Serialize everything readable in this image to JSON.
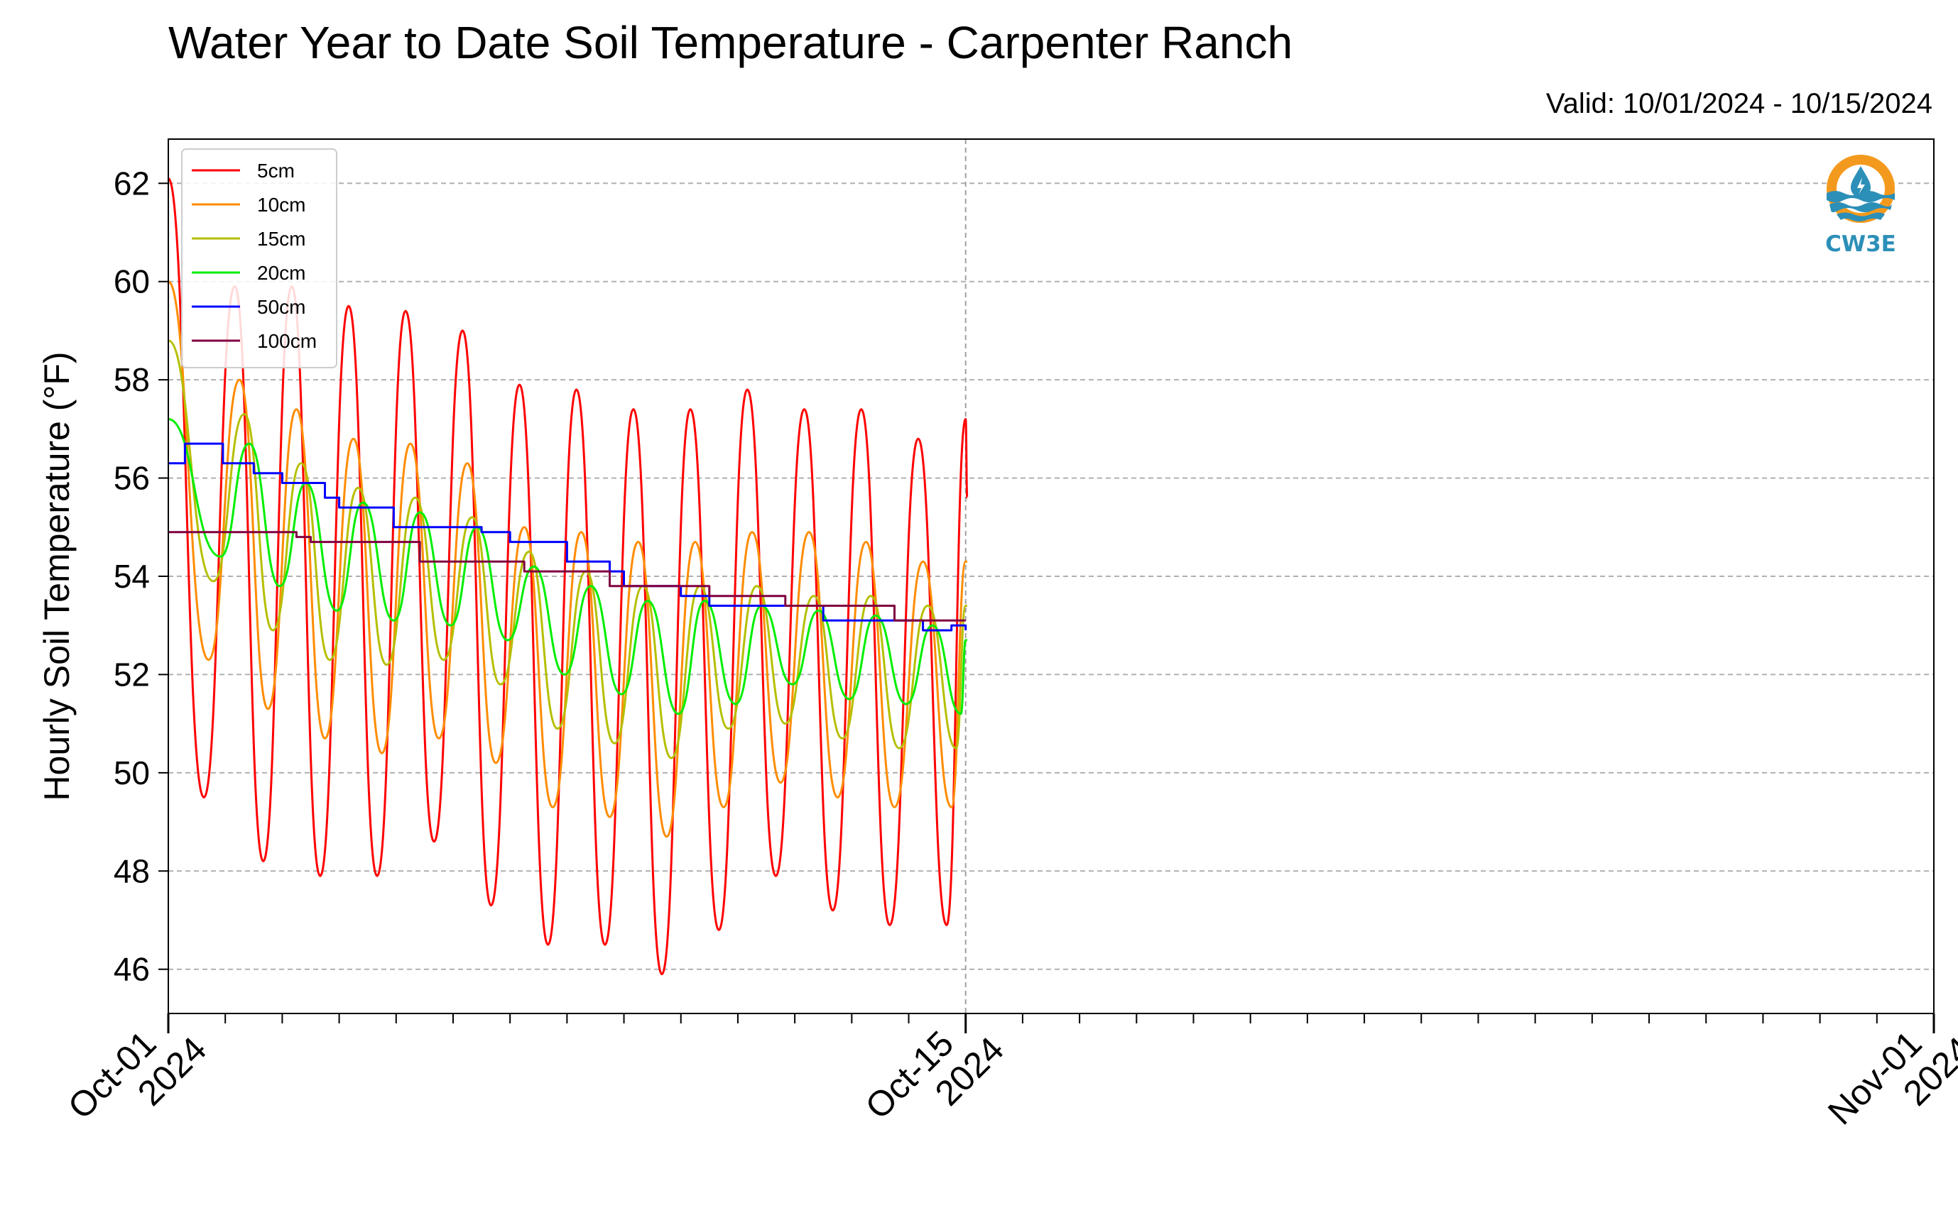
{
  "chart_data": {
    "type": "line",
    "title": "Water Year to Date Soil Temperature - Carpenter Ranch",
    "valid_label": "Valid: 10/01/2024 - 10/15/2024",
    "ylabel": "Hourly Soil Temperature (°F)",
    "xlabel": "",
    "x_range": [
      "2024-10-01",
      "2024-11-01"
    ],
    "ylim": [
      45.1,
      62.9
    ],
    "yticks": [
      46,
      48,
      50,
      52,
      54,
      56,
      58,
      60,
      62
    ],
    "ytick_labels": [
      "46",
      "48",
      "50",
      "52",
      "54",
      "56",
      "58",
      "60",
      "62"
    ],
    "xtick_labels": [
      {
        "date": "2024-10-01",
        "line1": "Oct-01",
        "line2": "2024"
      },
      {
        "date": "2024-10-15",
        "line1": "Oct-15",
        "line2": "2024"
      },
      {
        "date": "2024-11-01",
        "line1": "Nov-01",
        "line2": "2024"
      }
    ],
    "grid": true,
    "legend_position": "top-left",
    "vertical_marker_date": "2024-10-15",
    "series": [
      {
        "name": "5cm",
        "color": "#ff0000",
        "min_points": [
          {
            "x": "2024-10-01T15:00",
            "y": 49.5
          },
          {
            "x": "2024-10-02T16:00",
            "y": 48.2
          },
          {
            "x": "2024-10-03T16:00",
            "y": 47.9
          },
          {
            "x": "2024-10-04T16:00",
            "y": 47.9
          },
          {
            "x": "2024-10-05T16:00",
            "y": 48.6
          },
          {
            "x": "2024-10-06T16:00",
            "y": 47.3
          },
          {
            "x": "2024-10-07T16:00",
            "y": 46.5
          },
          {
            "x": "2024-10-08T16:00",
            "y": 46.5
          },
          {
            "x": "2024-10-09T16:00",
            "y": 45.9
          },
          {
            "x": "2024-10-10T16:00",
            "y": 46.8
          },
          {
            "x": "2024-10-11T16:00",
            "y": 47.9
          },
          {
            "x": "2024-10-12T16:00",
            "y": 47.2
          },
          {
            "x": "2024-10-13T16:00",
            "y": 46.9
          },
          {
            "x": "2024-10-14T16:00",
            "y": 46.9
          }
        ],
        "max_points": [
          {
            "x": "2024-10-01T00:00",
            "y": 62.1
          },
          {
            "x": "2024-10-02T04:00",
            "y": 59.9
          },
          {
            "x": "2024-10-03T04:00",
            "y": 59.9
          },
          {
            "x": "2024-10-04T04:00",
            "y": 59.5
          },
          {
            "x": "2024-10-05T04:00",
            "y": 59.4
          },
          {
            "x": "2024-10-06T04:00",
            "y": 59.0
          },
          {
            "x": "2024-10-07T04:00",
            "y": 57.9
          },
          {
            "x": "2024-10-08T04:00",
            "y": 57.8
          },
          {
            "x": "2024-10-09T04:00",
            "y": 57.4
          },
          {
            "x": "2024-10-10T04:00",
            "y": 57.4
          },
          {
            "x": "2024-10-11T04:00",
            "y": 57.8
          },
          {
            "x": "2024-10-12T04:00",
            "y": 57.4
          },
          {
            "x": "2024-10-13T04:00",
            "y": 57.4
          },
          {
            "x": "2024-10-14T04:00",
            "y": 56.8
          },
          {
            "x": "2024-10-15T00:00",
            "y": 57.2
          }
        ],
        "last_point": {
          "x": "2024-10-15T00:40",
          "y": 55.6
        }
      },
      {
        "name": "10cm",
        "color": "#ff8c00",
        "min_points": [
          {
            "x": "2024-10-01T17:00",
            "y": 52.3
          },
          {
            "x": "2024-10-02T18:00",
            "y": 51.3
          },
          {
            "x": "2024-10-03T18:00",
            "y": 50.7
          },
          {
            "x": "2024-10-04T18:00",
            "y": 50.4
          },
          {
            "x": "2024-10-05T18:00",
            "y": 50.7
          },
          {
            "x": "2024-10-06T18:00",
            "y": 50.2
          },
          {
            "x": "2024-10-07T18:00",
            "y": 49.3
          },
          {
            "x": "2024-10-08T18:00",
            "y": 49.1
          },
          {
            "x": "2024-10-09T18:00",
            "y": 48.7
          },
          {
            "x": "2024-10-10T18:00",
            "y": 49.3
          },
          {
            "x": "2024-10-11T18:00",
            "y": 49.8
          },
          {
            "x": "2024-10-12T18:00",
            "y": 49.5
          },
          {
            "x": "2024-10-13T18:00",
            "y": 49.3
          },
          {
            "x": "2024-10-14T18:00",
            "y": 49.3
          }
        ],
        "max_points": [
          {
            "x": "2024-10-01T00:00",
            "y": 60.0
          },
          {
            "x": "2024-10-02T06:00",
            "y": 58.0
          },
          {
            "x": "2024-10-03T06:00",
            "y": 57.4
          },
          {
            "x": "2024-10-04T06:00",
            "y": 56.8
          },
          {
            "x": "2024-10-05T06:00",
            "y": 56.7
          },
          {
            "x": "2024-10-06T06:00",
            "y": 56.3
          },
          {
            "x": "2024-10-07T06:00",
            "y": 55.0
          },
          {
            "x": "2024-10-08T06:00",
            "y": 54.9
          },
          {
            "x": "2024-10-09T06:00",
            "y": 54.7
          },
          {
            "x": "2024-10-10T06:00",
            "y": 54.7
          },
          {
            "x": "2024-10-11T06:00",
            "y": 54.9
          },
          {
            "x": "2024-10-12T06:00",
            "y": 54.9
          },
          {
            "x": "2024-10-13T06:00",
            "y": 54.7
          },
          {
            "x": "2024-10-14T06:00",
            "y": 54.3
          },
          {
            "x": "2024-10-15T00:00",
            "y": 54.3
          }
        ],
        "last_point": {
          "x": "2024-10-15T00:40",
          "y": 54.3
        }
      },
      {
        "name": "15cm",
        "color": "#b5bf00",
        "min_points": [
          {
            "x": "2024-10-01T19:00",
            "y": 53.9
          },
          {
            "x": "2024-10-02T20:00",
            "y": 52.9
          },
          {
            "x": "2024-10-03T20:00",
            "y": 52.3
          },
          {
            "x": "2024-10-04T20:00",
            "y": 52.2
          },
          {
            "x": "2024-10-05T20:00",
            "y": 52.3
          },
          {
            "x": "2024-10-06T20:00",
            "y": 51.8
          },
          {
            "x": "2024-10-07T20:00",
            "y": 50.9
          },
          {
            "x": "2024-10-08T20:00",
            "y": 50.6
          },
          {
            "x": "2024-10-09T20:00",
            "y": 50.3
          },
          {
            "x": "2024-10-10T20:00",
            "y": 50.9
          },
          {
            "x": "2024-10-11T20:00",
            "y": 51.0
          },
          {
            "x": "2024-10-12T20:00",
            "y": 50.7
          },
          {
            "x": "2024-10-13T20:00",
            "y": 50.5
          },
          {
            "x": "2024-10-14T20:00",
            "y": 50.5
          }
        ],
        "max_points": [
          {
            "x": "2024-10-01T00:00",
            "y": 58.8
          },
          {
            "x": "2024-10-02T08:00",
            "y": 57.3
          },
          {
            "x": "2024-10-03T08:00",
            "y": 56.3
          },
          {
            "x": "2024-10-04T08:00",
            "y": 55.8
          },
          {
            "x": "2024-10-05T08:00",
            "y": 55.6
          },
          {
            "x": "2024-10-06T08:00",
            "y": 55.2
          },
          {
            "x": "2024-10-07T08:00",
            "y": 54.5
          },
          {
            "x": "2024-10-08T08:00",
            "y": 54.1
          },
          {
            "x": "2024-10-09T08:00",
            "y": 53.8
          },
          {
            "x": "2024-10-10T08:00",
            "y": 53.8
          },
          {
            "x": "2024-10-11T08:00",
            "y": 53.8
          },
          {
            "x": "2024-10-12T08:00",
            "y": 53.6
          },
          {
            "x": "2024-10-13T08:00",
            "y": 53.6
          },
          {
            "x": "2024-10-14T08:00",
            "y": 53.4
          },
          {
            "x": "2024-10-15T00:00",
            "y": 53.4
          }
        ],
        "last_point": {
          "x": "2024-10-15T00:40",
          "y": 53.4
        }
      },
      {
        "name": "20cm",
        "color": "#00ee00",
        "min_points": [
          {
            "x": "2024-10-01T22:00",
            "y": 54.4
          },
          {
            "x": "2024-10-02T23:00",
            "y": 53.8
          },
          {
            "x": "2024-10-03T23:00",
            "y": 53.3
          },
          {
            "x": "2024-10-04T23:00",
            "y": 53.1
          },
          {
            "x": "2024-10-05T23:00",
            "y": 53.0
          },
          {
            "x": "2024-10-06T23:00",
            "y": 52.7
          },
          {
            "x": "2024-10-07T23:00",
            "y": 52.0
          },
          {
            "x": "2024-10-08T23:00",
            "y": 51.6
          },
          {
            "x": "2024-10-09T23:00",
            "y": 51.2
          },
          {
            "x": "2024-10-10T23:00",
            "y": 51.4
          },
          {
            "x": "2024-10-11T23:00",
            "y": 51.8
          },
          {
            "x": "2024-10-12T23:00",
            "y": 51.5
          },
          {
            "x": "2024-10-13T23:00",
            "y": 51.4
          },
          {
            "x": "2024-10-14T22:00",
            "y": 51.2
          }
        ],
        "max_points": [
          {
            "x": "2024-10-01T00:00",
            "y": 57.2
          },
          {
            "x": "2024-10-02T10:00",
            "y": 56.7
          },
          {
            "x": "2024-10-03T10:00",
            "y": 55.9
          },
          {
            "x": "2024-10-04T10:00",
            "y": 55.5
          },
          {
            "x": "2024-10-05T10:00",
            "y": 55.3
          },
          {
            "x": "2024-10-06T10:00",
            "y": 55.0
          },
          {
            "x": "2024-10-07T10:00",
            "y": 54.2
          },
          {
            "x": "2024-10-08T10:00",
            "y": 53.8
          },
          {
            "x": "2024-10-09T10:00",
            "y": 53.5
          },
          {
            "x": "2024-10-10T10:00",
            "y": 53.5
          },
          {
            "x": "2024-10-11T10:00",
            "y": 53.4
          },
          {
            "x": "2024-10-12T10:00",
            "y": 53.3
          },
          {
            "x": "2024-10-13T10:00",
            "y": 53.2
          },
          {
            "x": "2024-10-14T10:00",
            "y": 53.0
          },
          {
            "x": "2024-10-15T00:00",
            "y": 52.7
          }
        ],
        "last_point": {
          "x": "2024-10-15T00:40",
          "y": 52.7
        }
      },
      {
        "name": "50cm",
        "color": "#0000ff",
        "steps": [
          {
            "x": "2024-10-01T00:00",
            "y": 56.3
          },
          {
            "x": "2024-10-01T07:00",
            "y": 56.7
          },
          {
            "x": "2024-10-01T23:00",
            "y": 56.3
          },
          {
            "x": "2024-10-02T12:00",
            "y": 56.1
          },
          {
            "x": "2024-10-03T00:00",
            "y": 55.9
          },
          {
            "x": "2024-10-03T18:00",
            "y": 55.6
          },
          {
            "x": "2024-10-04T00:00",
            "y": 55.4
          },
          {
            "x": "2024-10-04T23:00",
            "y": 55.0
          },
          {
            "x": "2024-10-06T12:00",
            "y": 54.9
          },
          {
            "x": "2024-10-07T00:00",
            "y": 54.7
          },
          {
            "x": "2024-10-08T00:00",
            "y": 54.3
          },
          {
            "x": "2024-10-08T18:00",
            "y": 54.1
          },
          {
            "x": "2024-10-09T00:00",
            "y": 53.8
          },
          {
            "x": "2024-10-10T00:00",
            "y": 53.6
          },
          {
            "x": "2024-10-10T12:00",
            "y": 53.4
          },
          {
            "x": "2024-10-11T12:00",
            "y": 53.4
          },
          {
            "x": "2024-10-12T12:00",
            "y": 53.1
          },
          {
            "x": "2024-10-13T12:00",
            "y": 53.1
          },
          {
            "x": "2024-10-14T06:00",
            "y": 52.9
          },
          {
            "x": "2024-10-14T18:00",
            "y": 53.0
          },
          {
            "x": "2024-10-15T00:00",
            "y": 52.9
          }
        ]
      },
      {
        "name": "100cm",
        "color": "#800040",
        "steps": [
          {
            "x": "2024-10-01T00:00",
            "y": 54.9
          },
          {
            "x": "2024-10-03T06:00",
            "y": 54.8
          },
          {
            "x": "2024-10-03T12:00",
            "y": 54.7
          },
          {
            "x": "2024-10-05T06:00",
            "y": 54.7
          },
          {
            "x": "2024-10-05T10:00",
            "y": 54.3
          },
          {
            "x": "2024-10-07T06:00",
            "y": 54.1
          },
          {
            "x": "2024-10-08T12:00",
            "y": 54.1
          },
          {
            "x": "2024-10-08T18:00",
            "y": 53.8
          },
          {
            "x": "2024-10-09T12:00",
            "y": 53.8
          },
          {
            "x": "2024-10-10T12:00",
            "y": 53.6
          },
          {
            "x": "2024-10-11T12:00",
            "y": 53.6
          },
          {
            "x": "2024-10-11T20:00",
            "y": 53.4
          },
          {
            "x": "2024-10-13T12:00",
            "y": 53.4
          },
          {
            "x": "2024-10-13T18:00",
            "y": 53.1
          },
          {
            "x": "2024-10-15T00:00",
            "y": 53.1
          }
        ]
      }
    ]
  },
  "logo": {
    "text": "CW3E",
    "ring_color": "#f39a1e",
    "water_color": "#2c8fb8"
  }
}
